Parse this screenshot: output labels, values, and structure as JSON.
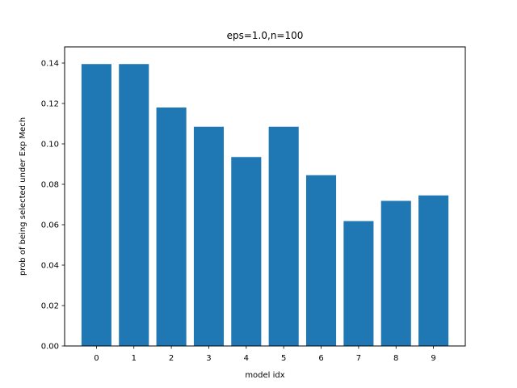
{
  "chart_data": {
    "type": "bar",
    "title": "eps=1.0,n=100",
    "xlabel": "model idx",
    "ylabel": "prob of being selected under Exp Mech",
    "categories": [
      "0",
      "1",
      "2",
      "3",
      "4",
      "5",
      "6",
      "7",
      "8",
      "9"
    ],
    "values": [
      0.1395,
      0.1395,
      0.118,
      0.1085,
      0.0935,
      0.1085,
      0.0845,
      0.0618,
      0.0718,
      0.0745
    ],
    "ylim": [
      0,
      0.148
    ],
    "yticks": [
      "0.00",
      "0.02",
      "0.04",
      "0.06",
      "0.08",
      "0.10",
      "0.12",
      "0.14"
    ],
    "bar_color": "#1f77b4",
    "grid": false,
    "legend": false
  }
}
